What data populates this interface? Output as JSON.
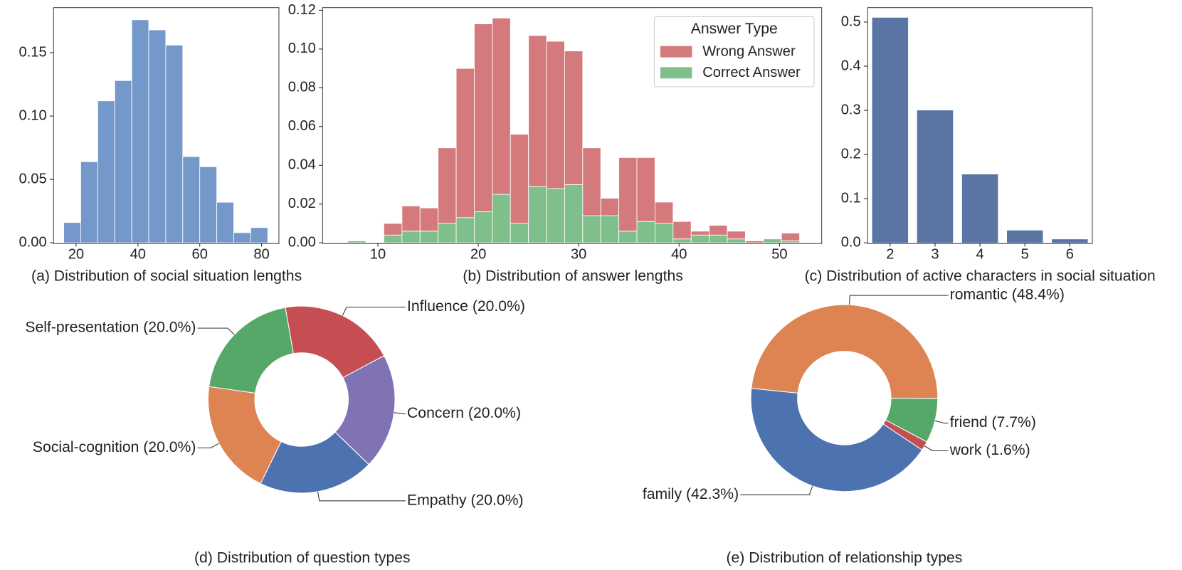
{
  "chart_data": [
    {
      "type": "histogram",
      "title": "(a) Distribution of social situation lengths",
      "bins": [
        16,
        21.5,
        27,
        32.5,
        38,
        43.5,
        49,
        54.5,
        60,
        65.5,
        71,
        76.5,
        82
      ],
      "values": [
        0.016,
        0.064,
        0.112,
        0.128,
        0.176,
        0.168,
        0.156,
        0.068,
        0.06,
        0.032,
        0.008,
        0.012
      ],
      "color": "#7498c9",
      "xlim": [
        12.7,
        85.6
      ],
      "ylim": [
        0,
        0.185
      ],
      "xticks": [
        20,
        40,
        60,
        80
      ],
      "yticks": [
        {
          "value": 0,
          "label": "0.00"
        },
        {
          "value": 0.05,
          "label": "0.05"
        },
        {
          "value": 0.1,
          "label": "0.10"
        },
        {
          "value": 0.15,
          "label": "0.15"
        }
      ]
    },
    {
      "type": "histogram",
      "stacked": true,
      "title": "(b) Distribution of answer lengths",
      "bins": [
        7,
        8.8,
        10.6,
        12.4,
        14.2,
        16,
        17.8,
        19.6,
        21.4,
        23.2,
        25,
        26.8,
        28.6,
        30.4,
        32.2,
        34,
        35.8,
        37.6,
        39.4,
        41.2,
        43,
        44.8,
        46.6,
        48.4,
        50.2,
        52
      ],
      "legend_title": "Answer Type",
      "legend": "upper right",
      "series": [
        {
          "name": "Wrong Answer",
          "color": "#d47a7c",
          "values": [
            0,
            0,
            0.006,
            0.013,
            0.012,
            0.039,
            0.077,
            0.097,
            0.091,
            0.046,
            0.078,
            0.076,
            0.069,
            0.035,
            0.009,
            0.038,
            0.033,
            0.011,
            0.009,
            0.002,
            0.005,
            0.004,
            0.001,
            0,
            0.004
          ]
        },
        {
          "name": "Correct Answer",
          "color": "#7fbf8c",
          "values": [
            0.001,
            0,
            0.004,
            0.006,
            0.006,
            0.01,
            0.013,
            0.016,
            0.025,
            0.01,
            0.029,
            0.028,
            0.03,
            0.014,
            0.014,
            0.006,
            0.011,
            0.01,
            0.002,
            0.004,
            0.004,
            0.002,
            0,
            0.002,
            0.001
          ]
        }
      ],
      "xlim": [
        4.5,
        54.2
      ],
      "ylim": [
        0,
        0.121
      ],
      "xticks": [
        10,
        20,
        30,
        40,
        50
      ],
      "yticks": [
        {
          "value": 0,
          "label": "0.00"
        },
        {
          "value": 0.02,
          "label": "0.02"
        },
        {
          "value": 0.04,
          "label": "0.04"
        },
        {
          "value": 0.06,
          "label": "0.06"
        },
        {
          "value": 0.08,
          "label": "0.08"
        },
        {
          "value": 0.1,
          "label": "0.10"
        },
        {
          "value": 0.12,
          "label": "0.12"
        }
      ]
    },
    {
      "type": "bar",
      "title": "(c) Distribution of active characters in social situation",
      "categories": [
        "2",
        "3",
        "4",
        "5",
        "6"
      ],
      "values": [
        0.51,
        0.3,
        0.155,
        0.028,
        0.008
      ],
      "color": "#5875a4",
      "ylim": [
        0,
        0.531
      ],
      "yticks": [
        {
          "value": 0,
          "label": "0.0"
        },
        {
          "value": 0.1,
          "label": "0.1"
        },
        {
          "value": 0.2,
          "label": "0.2"
        },
        {
          "value": 0.3,
          "label": "0.3"
        },
        {
          "value": 0.4,
          "label": "0.4"
        },
        {
          "value": 0.5,
          "label": "0.5"
        }
      ]
    },
    {
      "type": "pie",
      "title": "(d) Distribution of question types",
      "startangle": 100,
      "counterclock": false,
      "donut": true,
      "categories": [
        "Influence (20.0%)",
        "Concern (20.0%)",
        "Empathy (20.0%)",
        "Social-cognition (20.0%)",
        "Self-presentation (20.0%)"
      ],
      "values": [
        20,
        20,
        20,
        20,
        20
      ],
      "colors": [
        "#c44e52",
        "#8172b3",
        "#4c72b0",
        "#dd8452",
        "#55a868"
      ]
    },
    {
      "type": "pie",
      "title": "(e) Distribution of relationship types",
      "startangle": 174,
      "counterclock": false,
      "donut": true,
      "categories": [
        "romantic (48.4%)",
        "friend (7.7%)",
        "work (1.6%)",
        "family (42.3%)"
      ],
      "values": [
        48.4,
        7.7,
        1.6,
        42.3
      ],
      "colors": [
        "#dd8452",
        "#55a868",
        "#c44e52",
        "#4c72b0"
      ]
    }
  ]
}
